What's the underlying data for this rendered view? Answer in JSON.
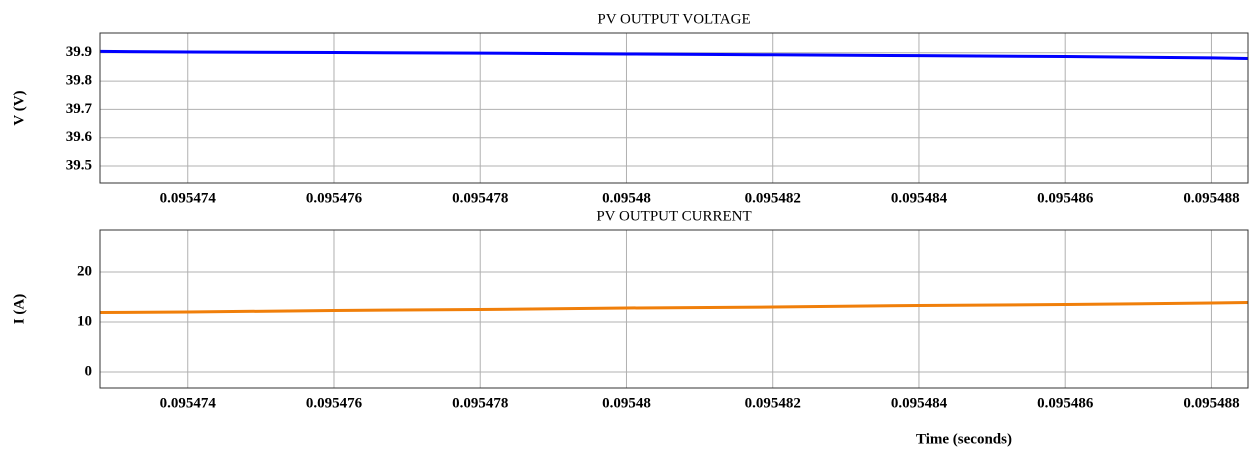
{
  "chart_data": [
    {
      "type": "line",
      "title": "PV OUTPUT VOLTAGE",
      "ylabel": "V (V)",
      "x": [
        0.0954728,
        0.095474,
        0.095476,
        0.095478,
        0.09548,
        0.095482,
        0.095484,
        0.095486,
        0.095488,
        0.0954885
      ],
      "series": [
        {
          "name": "V",
          "color": "#0000ff",
          "values": [
            39.905,
            39.903,
            39.901,
            39.899,
            39.896,
            39.893,
            39.89,
            39.887,
            39.882,
            39.88
          ]
        }
      ],
      "xlim": [
        0.0954728,
        0.0954885
      ],
      "xticks": [
        0.095474,
        0.095476,
        0.095478,
        0.09548,
        0.095482,
        0.095484,
        0.095486,
        0.095488
      ],
      "ylim": [
        39.44,
        39.97
      ],
      "yticks": [
        39.5,
        39.6,
        39.7,
        39.8,
        39.9
      ],
      "grid": true
    },
    {
      "type": "line",
      "title": "PV OUTPUT CURRENT",
      "ylabel": "I (A)",
      "xlabel": "Time (seconds)",
      "x": [
        0.0954728,
        0.095474,
        0.095476,
        0.095478,
        0.09548,
        0.095482,
        0.095484,
        0.095486,
        0.095488,
        0.0954885
      ],
      "series": [
        {
          "name": "I",
          "color": "#f07f0a",
          "values": [
            11.9,
            12.0,
            12.3,
            12.5,
            12.8,
            13.0,
            13.3,
            13.5,
            13.8,
            13.9
          ]
        }
      ],
      "xlim": [
        0.0954728,
        0.0954885
      ],
      "xticks": [
        0.095474,
        0.095476,
        0.095478,
        0.09548,
        0.095482,
        0.095484,
        0.095486,
        0.095488
      ],
      "ylim": [
        -3.2,
        28.4
      ],
      "yticks": [
        0,
        10,
        20
      ],
      "grid": true
    }
  ]
}
